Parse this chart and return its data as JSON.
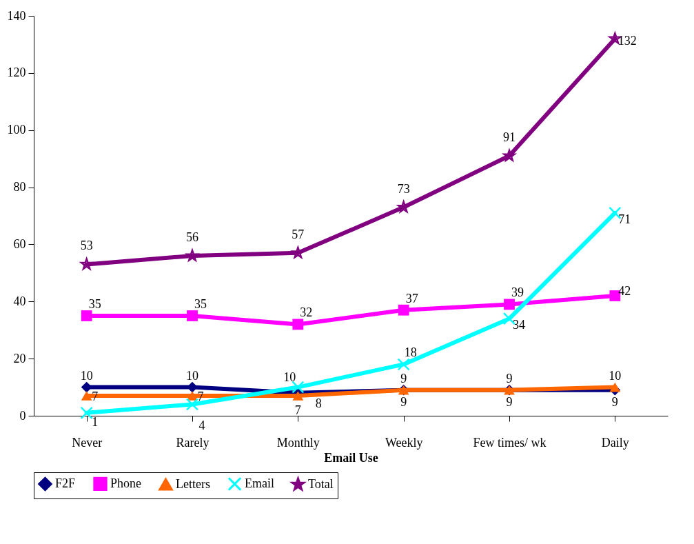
{
  "chart_data": {
    "type": "line",
    "xlabel": "Email Use",
    "categories": [
      "Never",
      "Rarely",
      "Monthly",
      "Weekly",
      "Few times/ wk",
      "Daily"
    ],
    "series": [
      {
        "name": "F2F",
        "color": "#000080",
        "marker": "diamond",
        "values": [
          10,
          10,
          8,
          9,
          9,
          9
        ]
      },
      {
        "name": "Phone",
        "color": "#ff00ff",
        "marker": "square",
        "values": [
          35,
          35,
          32,
          37,
          39,
          42
        ]
      },
      {
        "name": "Letters",
        "color": "#ff6600",
        "marker": "triangle",
        "values": [
          7,
          7,
          7,
          9,
          9,
          10
        ]
      },
      {
        "name": "Email",
        "color": "#00ffff",
        "marker": "cross",
        "values": [
          1,
          4,
          10,
          18,
          34,
          71
        ]
      },
      {
        "name": "Total",
        "color": "#800080",
        "marker": "star",
        "values": [
          53,
          56,
          57,
          73,
          91,
          132
        ]
      }
    ],
    "ylim": [
      0,
      140
    ],
    "yticks": [
      0,
      20,
      40,
      60,
      80,
      100,
      120,
      140
    ],
    "grid": false,
    "legend": "bottom",
    "data_labels": true
  }
}
